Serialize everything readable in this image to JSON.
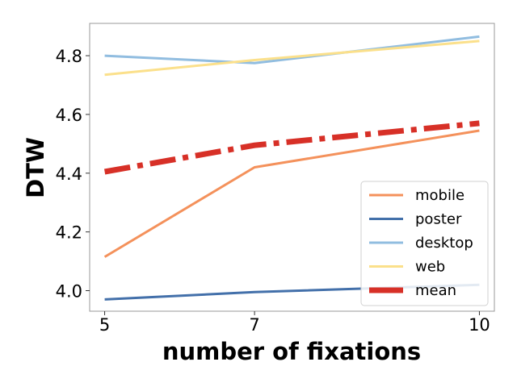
{
  "chart_data": {
    "type": "line",
    "title": "",
    "xlabel": "number of fixations",
    "ylabel": "DTW",
    "x": [
      5,
      7,
      10
    ],
    "xticks": [
      5,
      7,
      10
    ],
    "yticks": [
      4.0,
      4.2,
      4.4,
      4.6,
      4.8
    ],
    "xlim": [
      4.8,
      10.2
    ],
    "ylim": [
      3.93,
      4.91
    ],
    "grid": false,
    "legend_position": "lower-right",
    "series": [
      {
        "name": "mobile",
        "color": "#f4915b",
        "style": "solid",
        "values": [
          4.115,
          4.42,
          4.545
        ]
      },
      {
        "name": "poster",
        "color": "#4370aa",
        "style": "solid",
        "values": [
          3.97,
          3.995,
          4.02
        ]
      },
      {
        "name": "desktop",
        "color": "#91bde0",
        "style": "solid",
        "values": [
          4.8,
          4.775,
          4.865
        ]
      },
      {
        "name": "web",
        "color": "#fbe08b",
        "style": "solid",
        "values": [
          4.735,
          4.785,
          4.85
        ]
      },
      {
        "name": "mean",
        "color": "#d73027",
        "style": "dashdot",
        "values": [
          4.405,
          4.495,
          4.57
        ]
      }
    ]
  }
}
